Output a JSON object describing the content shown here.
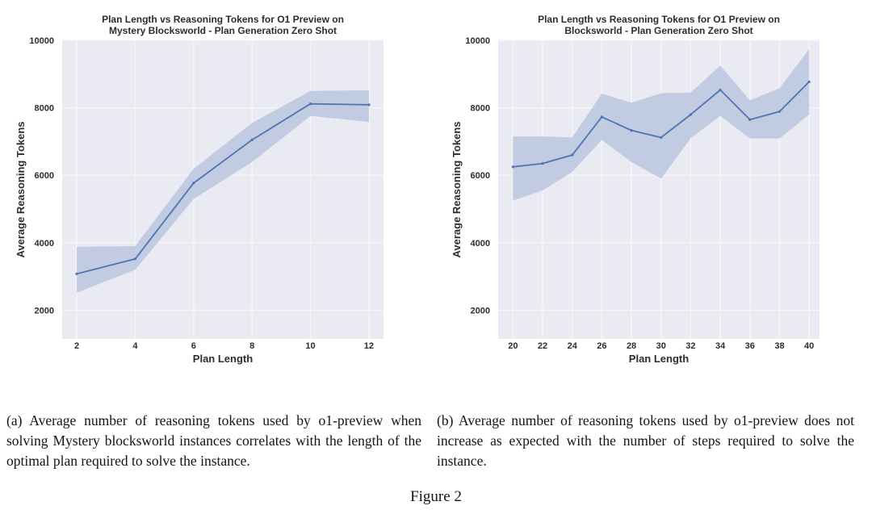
{
  "figure": {
    "caption_a": "(a) Average number of reasoning tokens used by o1-preview when solving Mystery blocksworld instances correlates with the length of the optimal plan required to solve the instance.",
    "caption_b": "(b) Average number of reasoning tokens used by o1-preview does not increase as expected with the number of steps required to solve the instance.",
    "figure_label": "Figure 2"
  },
  "colors": {
    "line": "#4e74b2",
    "band": "#b7c3dc",
    "plot_bg": "#e9eaf2",
    "grid": "#f5f5f9",
    "chart_text": "#2d2d2d",
    "caption_text": "#141414"
  },
  "chart_data": [
    {
      "id": "a",
      "type": "line",
      "title_lines": [
        "Plan Length vs Reasoning Tokens for O1 Preview on",
        "Mystery Blocksworld - Plan Generation Zero Shot"
      ],
      "xlabel": "Plan Length",
      "ylabel": "Average Reasoning Tokens",
      "x": [
        2,
        4,
        6,
        8,
        10,
        12
      ],
      "series": [
        {
          "name": "mean reasoning tokens",
          "values": [
            3080,
            3520,
            5770,
            7050,
            8120,
            8090
          ]
        }
      ],
      "band": {
        "name": "confidence interval",
        "lower": [
          2520,
          3200,
          5300,
          6390,
          7760,
          7580
        ],
        "upper": [
          3880,
          3900,
          6190,
          7550,
          8500,
          8520
        ]
      },
      "xticks": [
        2,
        4,
        6,
        8,
        10,
        12
      ],
      "yticks": [
        2000,
        4000,
        6000,
        8000,
        10000
      ],
      "xlim": [
        1.5,
        12.5
      ],
      "ylim": [
        1150,
        10000
      ],
      "grid": true,
      "legend": "none"
    },
    {
      "id": "b",
      "type": "line",
      "title_lines": [
        "Plan Length vs Reasoning Tokens for O1 Preview on",
        "Blocksworld - Plan Generation Zero Shot"
      ],
      "xlabel": "Plan Length",
      "ylabel": "Average Reasoning Tokens",
      "x": [
        20,
        22,
        24,
        26,
        28,
        30,
        32,
        34,
        36,
        38,
        40
      ],
      "series": [
        {
          "name": "mean reasoning tokens",
          "values": [
            6250,
            6350,
            6600,
            7730,
            7330,
            7120,
            7800,
            8530,
            7650,
            7890,
            8770
          ]
        }
      ],
      "band": {
        "name": "confidence interval",
        "lower": [
          5250,
          5550,
          6100,
          7050,
          6390,
          5900,
          7100,
          7760,
          7090,
          7090,
          7800
        ],
        "upper": [
          7150,
          7150,
          7120,
          8420,
          8150,
          8430,
          8450,
          9250,
          8220,
          8580,
          9740
        ]
      },
      "xticks": [
        20,
        22,
        24,
        26,
        28,
        30,
        32,
        34,
        36,
        38,
        40
      ],
      "yticks": [
        2000,
        4000,
        6000,
        8000,
        10000
      ],
      "xlim": [
        19,
        40.7
      ],
      "ylim": [
        1150,
        10000
      ],
      "grid": true,
      "legend": "none"
    }
  ]
}
